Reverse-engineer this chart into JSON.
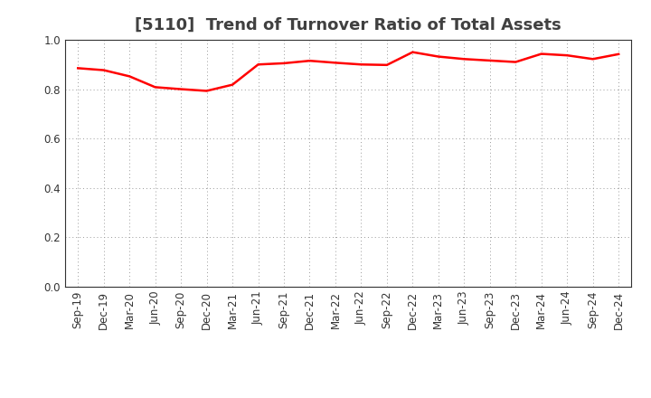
{
  "title": "[5110]  Trend of Turnover Ratio of Total Assets",
  "x_labels": [
    "Sep-19",
    "Dec-19",
    "Mar-20",
    "Jun-20",
    "Sep-20",
    "Dec-20",
    "Mar-21",
    "Jun-21",
    "Sep-21",
    "Dec-21",
    "Mar-22",
    "Jun-22",
    "Sep-22",
    "Dec-22",
    "Mar-23",
    "Jun-23",
    "Sep-23",
    "Dec-23",
    "Mar-24",
    "Jun-24",
    "Sep-24",
    "Dec-24"
  ],
  "values": [
    0.885,
    0.877,
    0.852,
    0.808,
    0.8,
    0.793,
    0.818,
    0.9,
    0.905,
    0.915,
    0.907,
    0.9,
    0.898,
    0.95,
    0.932,
    0.922,
    0.916,
    0.91,
    0.943,
    0.937,
    0.922,
    0.942
  ],
  "line_color": "#FF0000",
  "line_width": 1.8,
  "ylim": [
    0.0,
    1.0
  ],
  "yticks": [
    0.0,
    0.2,
    0.4,
    0.6,
    0.8,
    1.0
  ],
  "background_color": "#ffffff",
  "grid_color": "#999999",
  "title_fontsize": 13,
  "tick_fontsize": 8.5,
  "title_color": "#404040"
}
